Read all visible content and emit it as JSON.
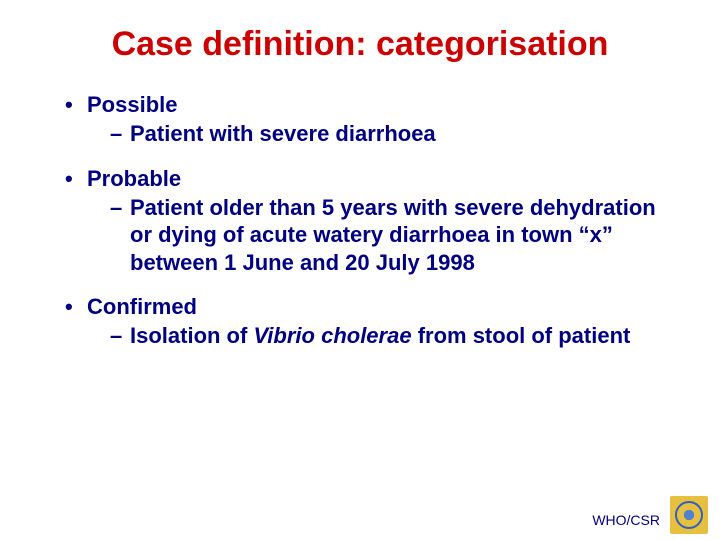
{
  "title": "Case definition: categorisation",
  "sections": [
    {
      "heading": "Possible",
      "items": [
        {
          "text": "Patient with severe diarrhoea",
          "italic_part": null
        }
      ]
    },
    {
      "heading": "Probable",
      "items": [
        {
          "text": "Patient older than 5 years with severe dehydration or dying of acute watery diarrhoea in town “x”  between 1 June and 20 July 1998",
          "italic_part": null
        }
      ]
    },
    {
      "heading": "Confirmed",
      "items": [
        {
          "prefix": "Isolation of ",
          "italic_part": "Vibrio cholerae",
          "suffix": " from stool of patient"
        }
      ]
    }
  ],
  "footer": "WHO/CSR",
  "colors": {
    "title": "#cc0000",
    "body": "#000080",
    "background": "#ffffff",
    "logo_bg": "#e8c040",
    "logo_fg": "#3060c0"
  }
}
